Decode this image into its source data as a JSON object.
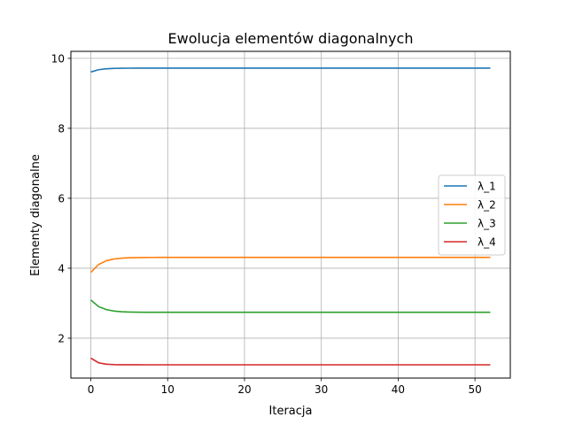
{
  "chart_data": {
    "type": "line",
    "title": "Ewolucja elementów diagonalnych",
    "xlabel": "Iteracja",
    "ylabel": "Elementy diagonalne",
    "xlim": [
      -2.6,
      54.6
    ],
    "ylim": [
      0.86,
      10.2
    ],
    "xticks": [
      0,
      10,
      20,
      30,
      40,
      50
    ],
    "yticks": [
      2,
      4,
      6,
      8,
      10
    ],
    "grid": true,
    "legend_position": "center-right",
    "x": [
      0,
      1,
      2,
      3,
      4,
      5,
      6,
      7,
      8,
      9,
      10,
      11,
      12,
      13,
      14,
      15,
      16,
      17,
      18,
      19,
      20,
      21,
      22,
      23,
      24,
      25,
      26,
      27,
      28,
      29,
      30,
      31,
      32,
      33,
      34,
      35,
      36,
      37,
      38,
      39,
      40,
      41,
      42,
      43,
      44,
      45,
      46,
      47,
      48,
      49,
      50,
      51,
      52
    ],
    "series": [
      {
        "name": "λ_1",
        "color": "#1f77b4",
        "start": 9.61,
        "end": 9.72,
        "rate": 0.9
      },
      {
        "name": "λ_2",
        "color": "#ff7f0e",
        "start": 3.88,
        "end": 4.31,
        "rate": 0.75
      },
      {
        "name": "λ_3",
        "color": "#2ca02c",
        "start": 3.09,
        "end": 2.74,
        "rate": 0.75
      },
      {
        "name": "λ_4",
        "color": "#d62728",
        "start": 1.43,
        "end": 1.24,
        "rate": 1.2
      }
    ]
  }
}
